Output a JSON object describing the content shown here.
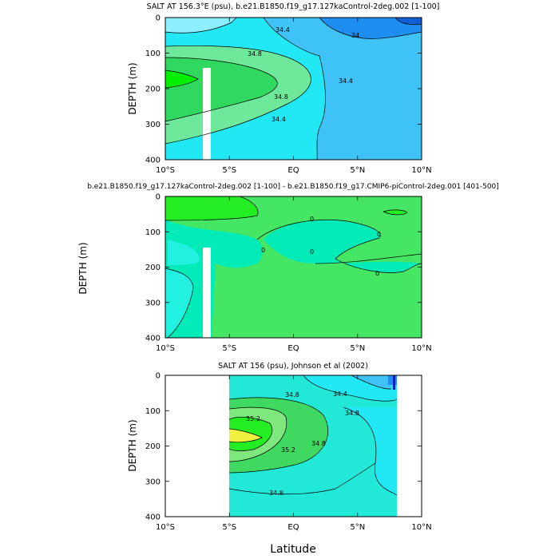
{
  "chart_data": [
    {
      "type": "contour",
      "title": "SALT AT 156.3°E (psu), b.e21.B1850.f19_g17.127kaControl-2deg.002 [1-100]",
      "ylabel": "DEPTH (m)",
      "xlabel": "",
      "xlim": [
        -10,
        10
      ],
      "ylim": [
        400,
        0
      ],
      "x_ticks": [
        {
          "value": -10,
          "label": "10°S"
        },
        {
          "value": -5,
          "label": "5°S"
        },
        {
          "value": 0,
          "label": "EQ"
        },
        {
          "value": 5,
          "label": "5°N"
        },
        {
          "value": 10,
          "label": "10°N"
        }
      ],
      "y_ticks": [
        {
          "value": 0,
          "label": "0"
        },
        {
          "value": 100,
          "label": "100"
        },
        {
          "value": 200,
          "label": "200"
        },
        {
          "value": 300,
          "label": "300"
        },
        {
          "value": 400,
          "label": "400"
        }
      ],
      "contour_labels": [
        "34.4",
        "34",
        "34.8",
        "34.8",
        "34.4",
        "34.4"
      ],
      "missing_band": {
        "x": [
          -8.3,
          -7.8
        ],
        "y": [
          150,
          400
        ]
      },
      "colors": {
        "background": "#22e8f6",
        "light": "#8ef0ff",
        "green_light": "#6ee89a",
        "green": "#00ee00",
        "green_mid": "#30d860",
        "blue_mid": "#3fc3f6",
        "blue_dark": "#1e8ef0"
      }
    },
    {
      "type": "contour",
      "title": "b.e21.B1850.f19_g17.127kaControl-2deg.002 [1-100] - b.e21.B1850.f19_g17.CMIP6-piControl-2deg.001 [401-500]",
      "ylabel": "DEPTH (m)",
      "xlabel": "",
      "xlim": [
        -10,
        10
      ],
      "ylim": [
        400,
        0
      ],
      "x_ticks": [
        {
          "value": -10,
          "label": "10°S"
        },
        {
          "value": -5,
          "label": "5°S"
        },
        {
          "value": 0,
          "label": "EQ"
        },
        {
          "value": 5,
          "label": "5°N"
        },
        {
          "value": 10,
          "label": "10°N"
        }
      ],
      "y_ticks": [
        {
          "value": 0,
          "label": "0"
        },
        {
          "value": 100,
          "label": "100"
        },
        {
          "value": 200,
          "label": "200"
        },
        {
          "value": 300,
          "label": "300"
        },
        {
          "value": 400,
          "label": "400"
        }
      ],
      "contour_labels": [
        "0",
        "0",
        "0",
        "0",
        "0"
      ],
      "missing_band": {
        "x": [
          -8.3,
          -7.8
        ],
        "y": [
          150,
          400
        ]
      },
      "colors": {
        "background": "#00ebb8",
        "green": "#44e664",
        "green_bright": "#22ee22",
        "aqua": "#22f0e0"
      }
    },
    {
      "type": "contour",
      "title": "SALT AT 156 (psu), Johnson et al (2002)",
      "ylabel": "DEPTH (m)",
      "xlabel": "Latitude",
      "xlim": [
        -10,
        10
      ],
      "ylim": [
        400,
        0
      ],
      "data_extent_x": [
        -5,
        8
      ],
      "x_ticks": [
        {
          "value": -10,
          "label": "10°S"
        },
        {
          "value": -5,
          "label": "5°S"
        },
        {
          "value": 0,
          "label": "EQ"
        },
        {
          "value": 5,
          "label": "5°N"
        },
        {
          "value": 10,
          "label": "10°N"
        }
      ],
      "y_ticks": [
        {
          "value": 0,
          "label": "0"
        },
        {
          "value": 100,
          "label": "100"
        },
        {
          "value": 200,
          "label": "200"
        },
        {
          "value": 300,
          "label": "300"
        },
        {
          "value": 400,
          "label": "400"
        }
      ],
      "contour_labels": [
        "34.8",
        "34.4",
        "35.2",
        "34.8",
        "35.2",
        "34.8",
        "34.8"
      ],
      "colors": {
        "background": "#22e8d8",
        "cyan": "#22e8f6",
        "green": "#3fd860",
        "green_light": "#7ee87e",
        "green_bright": "#22ee22",
        "yellow": "#f0f040",
        "blue": "#1e8ef0",
        "blue_dark": "#1020c0"
      }
    }
  ]
}
